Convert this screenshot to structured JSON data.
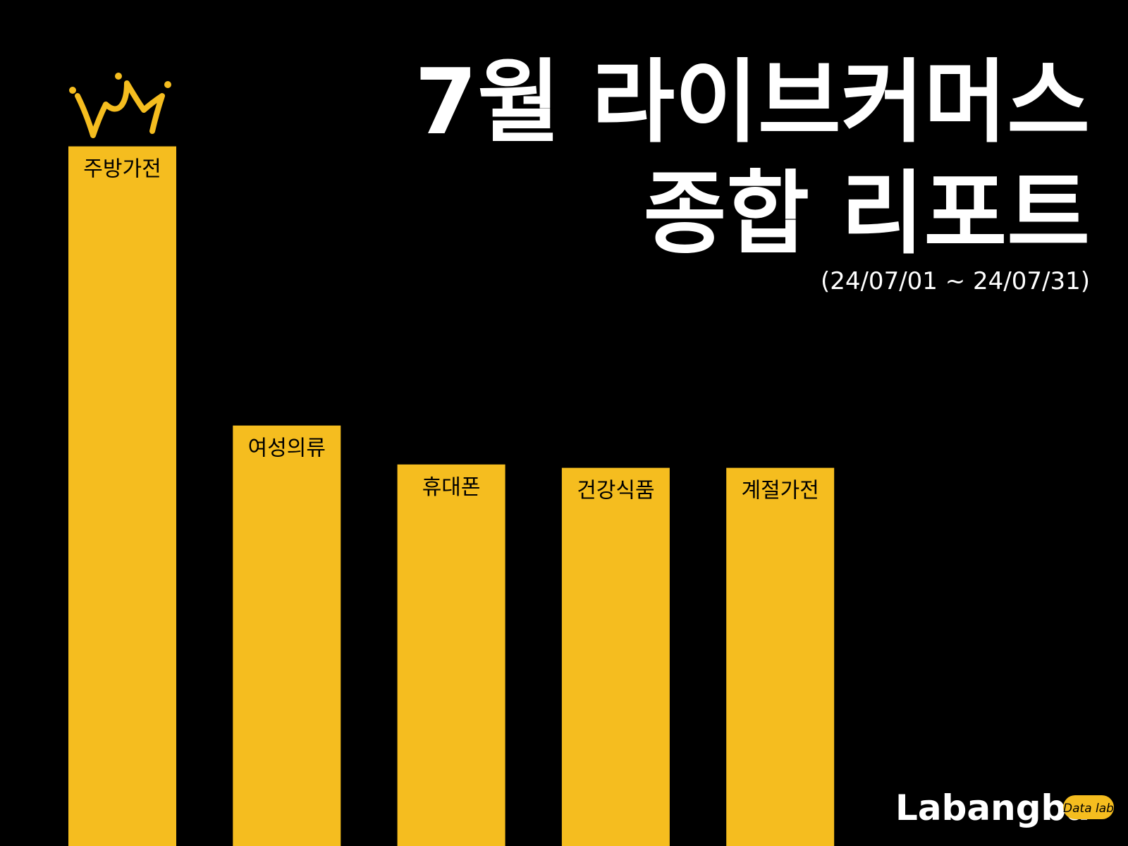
{
  "chart_data": {
    "type": "bar",
    "title": [
      "7월 라이브커머스",
      "종합 리포트"
    ],
    "subtitle": "(24/07/01 ~ 24/07/31)",
    "categories": [
      "주방가전",
      "여성의류",
      "휴대폰",
      "건강식품",
      "계절가전"
    ],
    "values": [
      82.7,
      49.7,
      45.1,
      44.7,
      44.7
    ],
    "color": "#f5bd1f",
    "ylim": [
      0,
      100
    ],
    "brand": "Labangba",
    "brand_tag": "Data lab"
  }
}
